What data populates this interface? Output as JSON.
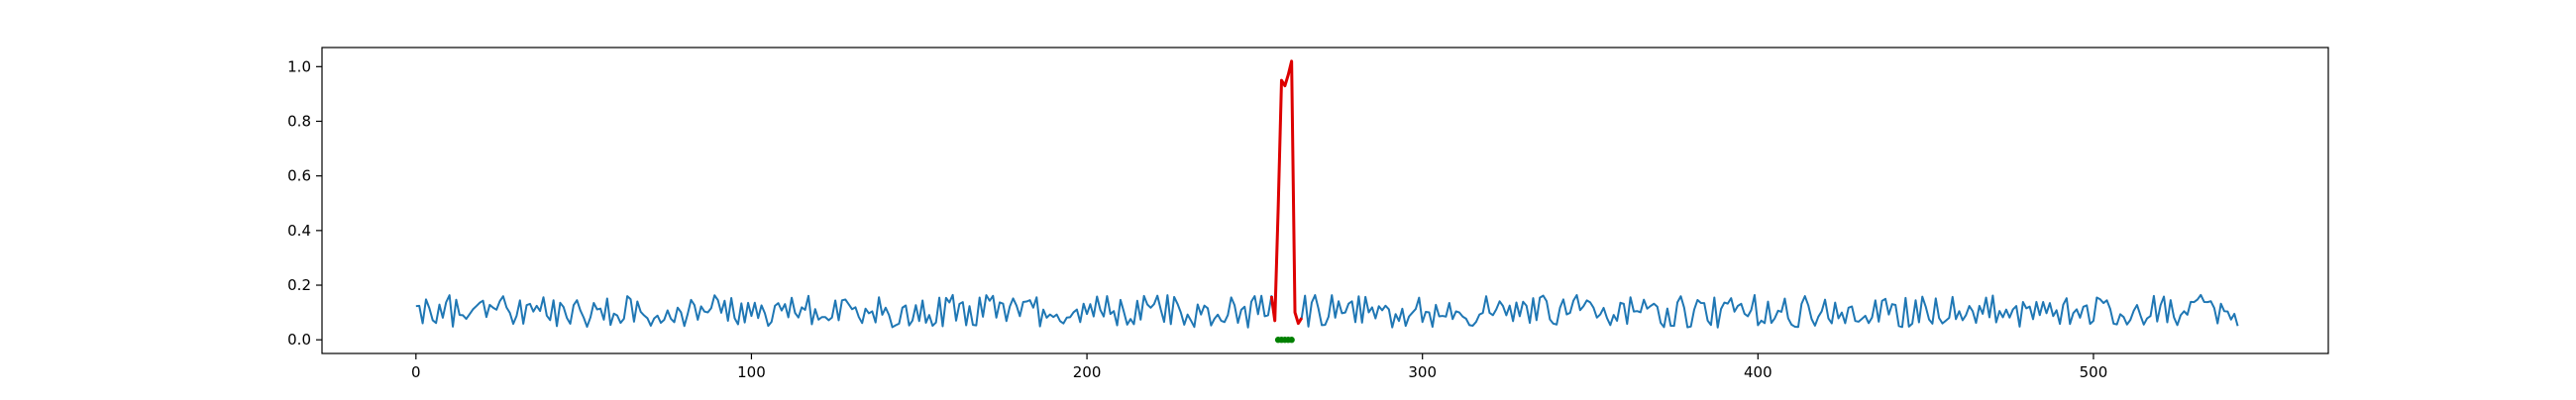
{
  "chart_data": {
    "type": "line",
    "title": "",
    "xlabel": "",
    "ylabel": "",
    "xlim": [
      -28,
      570
    ],
    "ylim": [
      -0.05,
      1.07
    ],
    "x_ticks": [
      0,
      100,
      200,
      300,
      400,
      500
    ],
    "x_tick_labels": [
      "0",
      "100",
      "200",
      "300",
      "400",
      "500"
    ],
    "y_ticks": [
      0.0,
      0.2,
      0.4,
      0.6,
      0.8,
      1.0
    ],
    "y_tick_labels": [
      "0.0",
      "0.2",
      "0.4",
      "0.6",
      "0.8",
      "1.0"
    ],
    "grid": false,
    "n_points": 544,
    "baseline": {
      "mean": 0.105,
      "amplitude": 0.06,
      "range": [
        0.0,
        0.22
      ]
    },
    "anomaly": {
      "x_start": 255,
      "x_end": 264,
      "values": [
        0.16,
        0.07,
        0.48,
        0.95,
        0.93,
        0.97,
        1.02,
        0.1,
        0.06,
        0.08
      ],
      "marker_x": [
        257,
        258,
        259,
        260,
        261
      ],
      "marker_y": 0.0
    },
    "colors": {
      "series": "#1f77b4",
      "anomaly": "#dd0000",
      "marker": "#008000",
      "axis": "#000000"
    }
  }
}
